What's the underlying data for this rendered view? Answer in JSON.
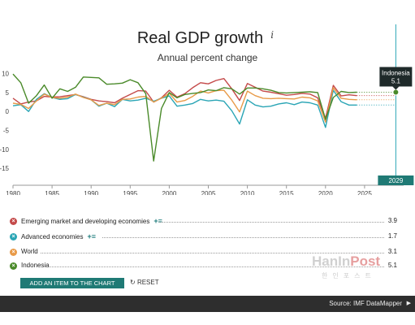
{
  "chart_data": {
    "type": "line",
    "title": "Real GDP growth",
    "subtitle": "Annual percent change",
    "info_icon": "i",
    "x": [
      1980,
      1981,
      1982,
      1983,
      1984,
      1985,
      1986,
      1987,
      1988,
      1989,
      1990,
      1991,
      1992,
      1993,
      1994,
      1995,
      1996,
      1997,
      1998,
      1999,
      2000,
      2001,
      2002,
      2003,
      2004,
      2005,
      2006,
      2007,
      2008,
      2009,
      2010,
      2011,
      2012,
      2013,
      2014,
      2015,
      2016,
      2017,
      2018,
      2019,
      2020,
      2021,
      2022,
      2023,
      2024
    ],
    "xlim": [
      1980,
      2030
    ],
    "ylim": [
      -18,
      11
    ],
    "x_ticks": [
      1980,
      1985,
      1990,
      1995,
      2000,
      2005,
      2010,
      2015,
      2020,
      2025
    ],
    "y_ticks": [
      10,
      5,
      0,
      -5,
      -10,
      -15
    ],
    "grid": false,
    "series": [
      {
        "name": "Emerging market and developing economies",
        "color": "#c44a4a",
        "values": [
          3.5,
          2.0,
          2.5,
          2.8,
          4.0,
          3.8,
          3.9,
          4.2,
          4.5,
          3.9,
          3.2,
          2.8,
          2.6,
          2.3,
          3.5,
          4.5,
          5.5,
          5.4,
          2.5,
          3.6,
          5.6,
          3.8,
          4.7,
          6.3,
          7.6,
          7.3,
          8.2,
          8.7,
          6.0,
          2.9,
          7.4,
          6.4,
          5.4,
          5.1,
          4.7,
          4.3,
          4.5,
          4.8,
          4.6,
          3.6,
          -1.8,
          6.9,
          4.1,
          4.4,
          4.2
        ]
      },
      {
        "name": "Advanced economies",
        "color": "#2aa5b5",
        "values": [
          1.5,
          1.8,
          0.0,
          3.2,
          4.7,
          3.7,
          3.2,
          3.4,
          4.5,
          3.8,
          3.1,
          1.4,
          2.2,
          1.3,
          3.2,
          2.8,
          3.0,
          3.5,
          2.7,
          3.5,
          4.1,
          1.4,
          1.7,
          2.1,
          3.2,
          2.8,
          3.0,
          2.7,
          0.2,
          -3.3,
          3.1,
          1.7,
          1.2,
          1.4,
          2.0,
          2.3,
          1.8,
          2.5,
          2.3,
          1.7,
          -4.2,
          5.6,
          2.6,
          1.7,
          1.7
        ]
      },
      {
        "name": "World",
        "color": "#e89a48",
        "values": [
          2.2,
          1.9,
          0.8,
          2.8,
          4.6,
          3.7,
          3.5,
          3.8,
          4.6,
          3.7,
          3.1,
          1.6,
          2.2,
          1.8,
          3.2,
          3.3,
          3.8,
          4.0,
          2.5,
          3.5,
          4.8,
          2.5,
          2.9,
          4.0,
          5.4,
          4.9,
          5.5,
          5.6,
          3.0,
          -0.1,
          5.4,
          4.2,
          3.5,
          3.4,
          3.5,
          3.4,
          3.3,
          3.8,
          3.6,
          2.8,
          -2.8,
          6.3,
          3.5,
          3.2,
          3.1
        ]
      },
      {
        "name": "Indonesia",
        "color": "#4a8a2a",
        "values": [
          9.9,
          7.6,
          2.2,
          4.2,
          7.0,
          3.5,
          6.0,
          5.3,
          6.4,
          9.1,
          9.0,
          8.9,
          7.2,
          7.3,
          7.5,
          8.4,
          7.6,
          4.7,
          -13.1,
          0.8,
          5.0,
          3.6,
          4.5,
          4.8,
          5.0,
          5.7,
          5.5,
          6.3,
          6.0,
          4.6,
          6.2,
          6.2,
          6.0,
          5.6,
          5.0,
          4.9,
          5.0,
          5.1,
          5.2,
          5.0,
          -2.1,
          3.7,
          5.3,
          5.0,
          5.1
        ]
      }
    ],
    "tooltip": {
      "name": "Indonesia",
      "value": "5.1"
    },
    "cursor_year_label": "2029"
  },
  "legend": [
    {
      "name": "Emerging market and developing economies",
      "value": "3.9",
      "color": "#c44a4a",
      "tools": "+≡"
    },
    {
      "name": "Advanced economies",
      "value": "1.7",
      "color": "#2aa5b5",
      "tools": "+≡"
    },
    {
      "name": "World",
      "value": "3.1",
      "color": "#e89a48",
      "tools": ""
    },
    {
      "name": "Indonesia",
      "value": "5.1",
      "color": "#4a8a2a",
      "tools": ""
    }
  ],
  "controls": {
    "add_item_label": "ADD AN ITEM TO THE CHART",
    "reset_label": "RESET",
    "reset_icon": "↻"
  },
  "footer": {
    "source": "Source: IMF DataMapper",
    "arrow": "▶"
  },
  "watermark": {
    "brand_a": "HanIn",
    "brand_b": "Post",
    "sub": "한인포스트"
  }
}
